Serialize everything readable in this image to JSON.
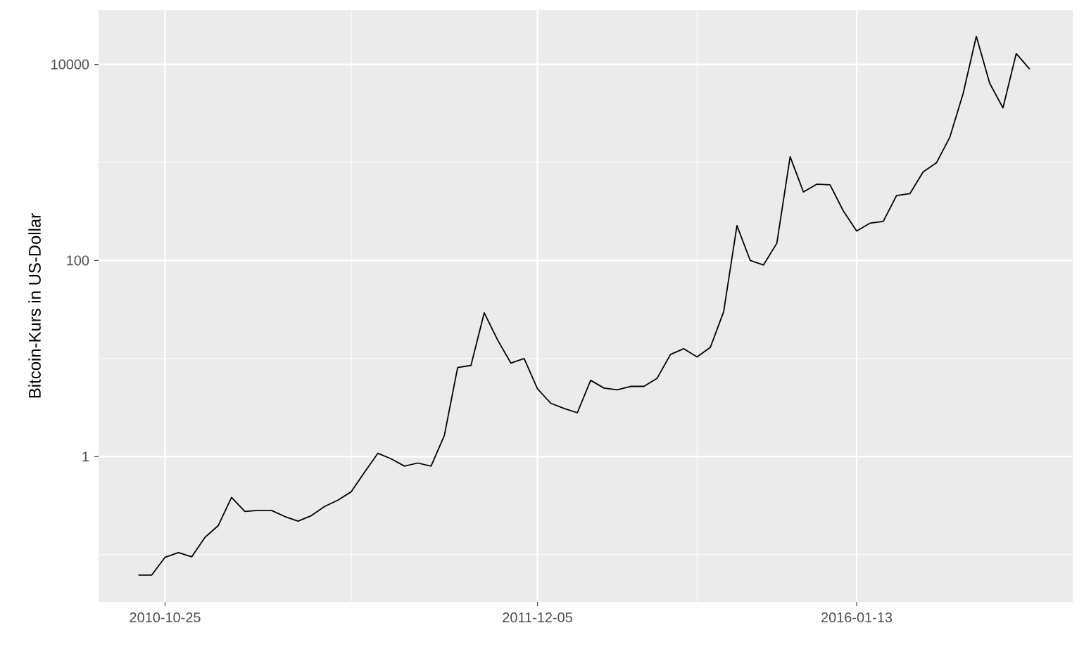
{
  "chart_data": {
    "type": "line",
    "ylabel": "Bitcoin-Kurs in US-Dollar",
    "categories": [
      null,
      null,
      "2010-10-25",
      null,
      null,
      null,
      null,
      null,
      null,
      null,
      null,
      null,
      null,
      null,
      null,
      null,
      null,
      null,
      null,
      null,
      null,
      null,
      null,
      null,
      null,
      null,
      null,
      null,
      null,
      null,
      "2011-12-05",
      null,
      null,
      null,
      null,
      null,
      null,
      null,
      null,
      null,
      null,
      null,
      null,
      null,
      null,
      null,
      null,
      null,
      null,
      null,
      null,
      null,
      null,
      null,
      "2016-01-13",
      null,
      null,
      null,
      null,
      null,
      null,
      null,
      null,
      null,
      null,
      null,
      null,
      null
    ],
    "series": [
      {
        "color": "#000000",
        "values": [
          0.062,
          0.062,
          0.094,
          0.105,
          0.095,
          0.15,
          0.198,
          0.384,
          0.276,
          0.283,
          0.283,
          0.245,
          0.22,
          0.25,
          0.31,
          0.36,
          0.438,
          0.695,
          1.08,
          0.95,
          0.8,
          0.86,
          0.8,
          1.64,
          8.1,
          8.5,
          29.3,
          15.5,
          9,
          10,
          4.92,
          3.5,
          3.1,
          2.8,
          6,
          5,
          4.8,
          5.2,
          5.2,
          6.3,
          11,
          12.6,
          10.4,
          13,
          30,
          227,
          100,
          90,
          150,
          1143,
          500,
          600,
          590,
          320,
          200,
          240,
          250,
          459,
          480,
          800,
          991,
          1800,
          5000,
          19360,
          6430,
          3600,
          12900,
          8970
        ]
      }
    ],
    "ylim": [
      0.033,
      36000
    ],
    "log": "y",
    "yticks": [
      1,
      100,
      10000
    ],
    "grid": true,
    "marker": "none",
    "line_style": "solid"
  }
}
